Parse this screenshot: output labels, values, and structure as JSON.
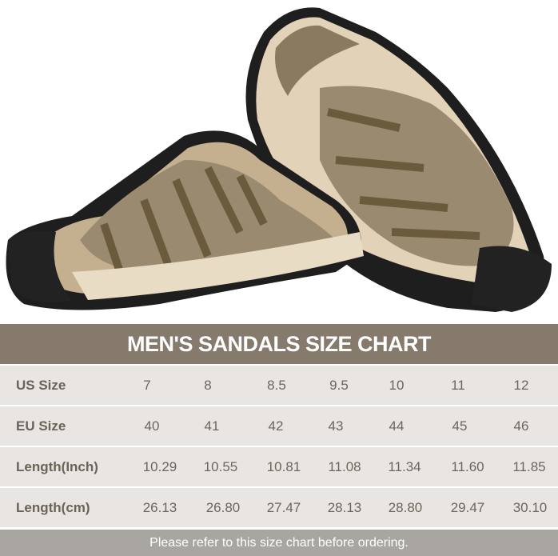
{
  "chart": {
    "title": "MEN'S SANDALS SIZE CHART",
    "rows": [
      {
        "label": "US Size",
        "values": [
          "7",
          "8",
          "8.5",
          "9.5",
          "10",
          "11",
          "12"
        ]
      },
      {
        "label": "EU Size",
        "values": [
          "40",
          "41",
          "42",
          "43",
          "44",
          "45",
          "46"
        ]
      },
      {
        "label": "Length(Inch)",
        "values": [
          "10.29",
          "10.55",
          "10.81",
          "11.08",
          "11.34",
          "11.60",
          "11.85"
        ]
      },
      {
        "label": "Length(cm)",
        "values": [
          "26.13",
          "26.80",
          "27.47",
          "28.13",
          "28.80",
          "29.47",
          "30.10"
        ]
      }
    ],
    "footer": "Please refer to this size chart before ordering."
  },
  "colors": {
    "header": "#857a6c",
    "row": "#e8e5e2",
    "footer": "#a9a6a2",
    "camo": "#8a7a60",
    "sole": "#1e1e1e"
  }
}
